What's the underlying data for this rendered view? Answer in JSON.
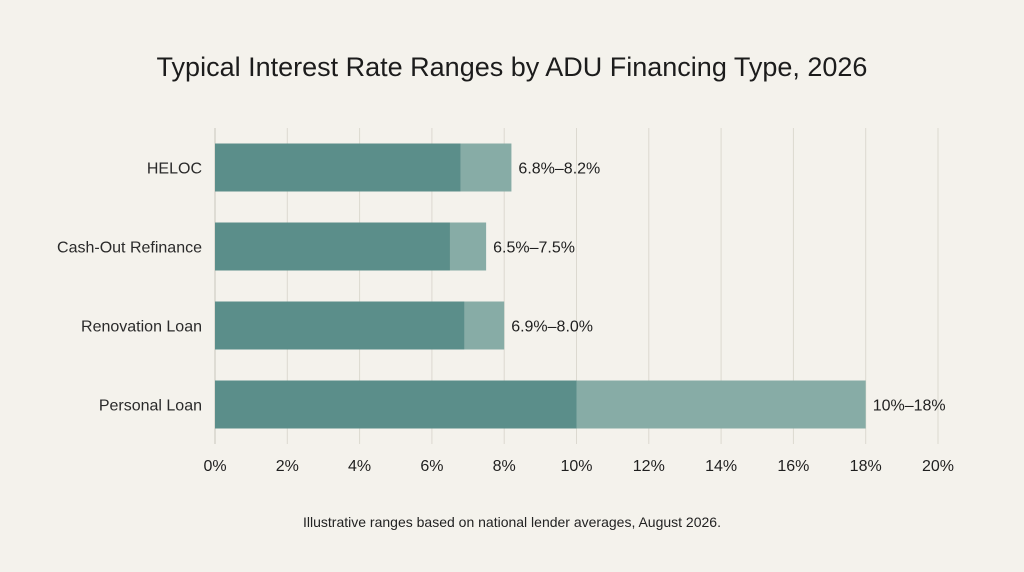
{
  "chart_data": {
    "type": "bar",
    "orientation": "horizontal",
    "title": "Typical Interest Rate Ranges by ADU Financing Type, 2026",
    "note": "Illustrative ranges based on national lender averages, August 2026.",
    "xlabel": "",
    "ylabel": "",
    "xlim": [
      0,
      20
    ],
    "x_ticks": [
      "0%",
      "2%",
      "4%",
      "6%",
      "8%",
      "10%",
      "12%",
      "14%",
      "16%",
      "18%",
      "20%"
    ],
    "x_tick_values": [
      0,
      2,
      4,
      6,
      8,
      10,
      12,
      14,
      16,
      18,
      20
    ],
    "grid": "vertical",
    "categories": [
      "HELOC",
      "Cash-Out Refinance",
      "Renovation Loan",
      "Personal Loan"
    ],
    "series": [
      {
        "low": [
          6.8,
          6.5,
          6.9,
          10
        ],
        "high": [
          8.2,
          7.5,
          8.0,
          18
        ],
        "labels": [
          "6.8%–8.2%",
          "6.5%–7.5%",
          "6.9%–8.0%",
          "10%–18%"
        ]
      }
    ],
    "colors": {
      "base": "#5b8e8a",
      "range": "#87aca6",
      "grid": "#dcd9d0",
      "axis": "#c9c6bd"
    }
  }
}
